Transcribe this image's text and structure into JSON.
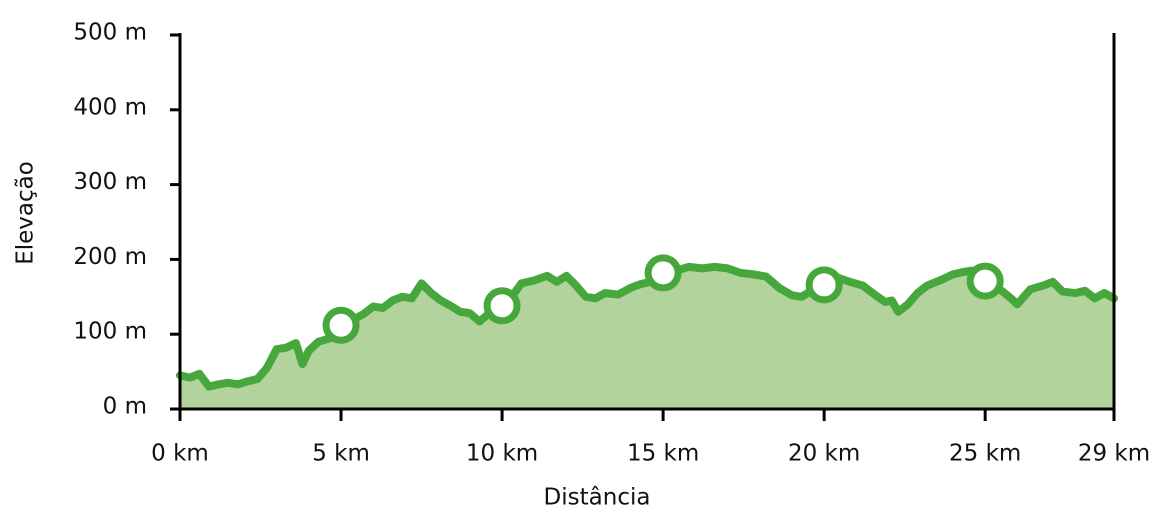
{
  "chart_data": {
    "type": "area",
    "x_label": "Distância",
    "y_label": "Elevação",
    "x": [
      0,
      0.3,
      0.6,
      0.9,
      1.2,
      1.5,
      1.8,
      2.1,
      2.4,
      2.7,
      3.0,
      3.3,
      3.6,
      3.8,
      4.0,
      4.3,
      4.7,
      5.0,
      5.4,
      5.7,
      6.0,
      6.3,
      6.6,
      6.9,
      7.2,
      7.5,
      7.8,
      8.1,
      8.4,
      8.7,
      9.0,
      9.3,
      9.6,
      10.0,
      10.3,
      10.6,
      11.0,
      11.4,
      11.7,
      12.0,
      12.3,
      12.6,
      12.9,
      13.2,
      13.6,
      14.0,
      14.3,
      14.6,
      15.0,
      15.4,
      15.8,
      16.2,
      16.6,
      17.0,
      17.4,
      17.8,
      18.2,
      18.6,
      19.0,
      19.3,
      19.6,
      20.0,
      20.4,
      20.8,
      21.2,
      21.6,
      21.9,
      22.1,
      22.3,
      22.6,
      22.9,
      23.2,
      23.6,
      24.0,
      24.3,
      24.6,
      25.0,
      25.4,
      25.8,
      26.0,
      26.4,
      26.8,
      27.1,
      27.4,
      27.8,
      28.1,
      28.4,
      28.7,
      29.0
    ],
    "series": [
      {
        "color": "#46a83c",
        "fill": "#b3d39c",
        "values": [
          45,
          42,
          47,
          30,
          33,
          35,
          33,
          37,
          40,
          55,
          80,
          82,
          88,
          60,
          78,
          90,
          95,
          112,
          120,
          127,
          137,
          135,
          145,
          150,
          148,
          168,
          155,
          145,
          138,
          130,
          128,
          117,
          128,
          138,
          150,
          168,
          172,
          178,
          170,
          178,
          165,
          150,
          148,
          155,
          153,
          162,
          167,
          170,
          182,
          185,
          190,
          188,
          190,
          188,
          182,
          180,
          177,
          162,
          152,
          150,
          158,
          166,
          176,
          170,
          165,
          152,
          143,
          145,
          130,
          140,
          155,
          165,
          172,
          180,
          183,
          185,
          171,
          162,
          148,
          140,
          160,
          165,
          170,
          157,
          155,
          158,
          148,
          155,
          148
        ]
      }
    ],
    "markers": {
      "x": [
        5,
        10,
        15,
        20,
        25
      ],
      "values": [
        112,
        138,
        182,
        166,
        171
      ]
    },
    "xlim": [
      0,
      29
    ],
    "ylim": [
      0,
      500
    ],
    "xticks": [
      {
        "value": 0,
        "label": "0 km"
      },
      {
        "value": 5,
        "label": "5 km"
      },
      {
        "value": 10,
        "label": "10 km"
      },
      {
        "value": 15,
        "label": "15 km"
      },
      {
        "value": 20,
        "label": "20 km"
      },
      {
        "value": 25,
        "label": "25 km"
      },
      {
        "value": 29,
        "label": "29 km"
      }
    ],
    "yticks": [
      {
        "value": 0,
        "label": "0 m"
      },
      {
        "value": 100,
        "label": "100 m"
      },
      {
        "value": 200,
        "label": "200 m"
      },
      {
        "value": 300,
        "label": "300 m"
      },
      {
        "value": 400,
        "label": "400 m"
      },
      {
        "value": 500,
        "label": "500 m"
      }
    ]
  }
}
